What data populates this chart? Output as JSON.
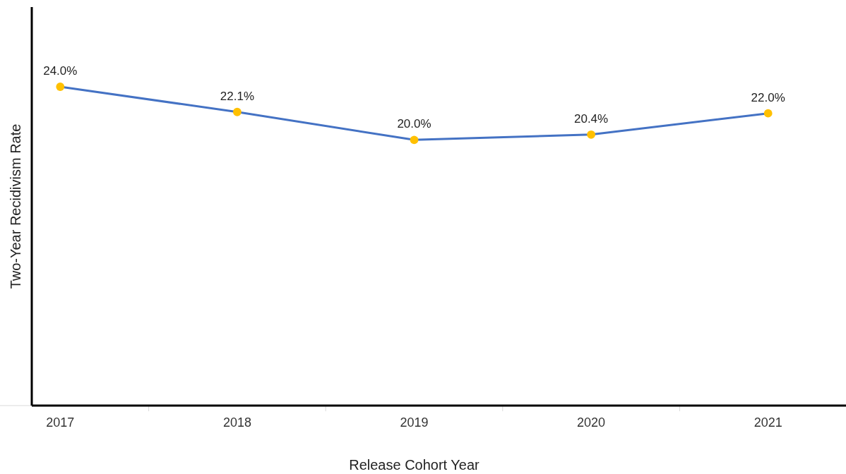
{
  "chart_data": {
    "type": "line",
    "xlabel": "Release Cohort Year",
    "ylabel": "Two-Year Recidivism Rate",
    "categories": [
      "2017",
      "2018",
      "2019",
      "2020",
      "2021"
    ],
    "series": [
      {
        "color": "#4472c4",
        "values": [
          24.0,
          22.1,
          20.0,
          20.4,
          22.0
        ],
        "value_labels": [
          "24.0%",
          "22.1%",
          "20.0%",
          "20.4%",
          "22.0%"
        ]
      }
    ],
    "ylim": [
      0,
      30
    ],
    "tick_labels": "x",
    "marker": "circle",
    "line_style": "solid",
    "grid": false
  }
}
